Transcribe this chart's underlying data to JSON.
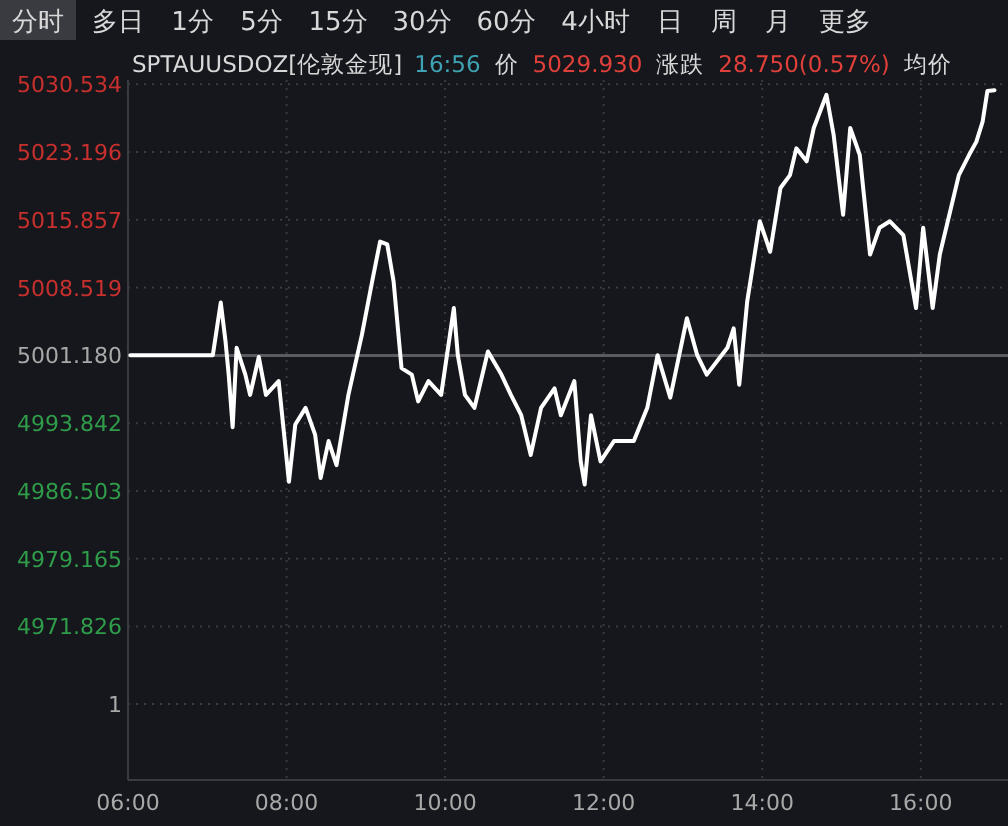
{
  "chart_data": {
    "type": "line",
    "title": "SPTAUUSDOZ[伦敦金现]",
    "annotations": [
      "分时",
      "多日",
      "1分",
      "5分",
      "15分",
      "30分",
      "60分",
      "4小时",
      "日",
      "周",
      "月",
      "更多",
      "16:56",
      "价",
      "5029.930",
      "涨跌",
      "28.750(0.57%)",
      "均价",
      "1"
    ],
    "x": [
      6.03,
      7.07,
      7.17,
      7.23,
      7.27,
      7.32,
      7.37,
      7.48,
      7.54,
      7.65,
      7.74,
      7.9,
      8.03,
      8.11,
      8.24,
      8.36,
      8.43,
      8.53,
      8.63,
      8.78,
      8.95,
      9.08,
      9.18,
      9.27,
      9.35,
      9.45,
      9.58,
      9.66,
      9.79,
      9.95,
      10.11,
      10.16,
      10.25,
      10.37,
      10.54,
      10.71,
      10.83,
      10.96,
      11.08,
      11.21,
      11.38,
      11.46,
      11.63,
      11.71,
      11.76,
      11.84,
      11.96,
      12.13,
      12.38,
      12.55,
      12.68,
      12.84,
      13.05,
      13.18,
      13.3,
      13.56,
      13.64,
      13.71,
      13.81,
      13.97,
      14.1,
      14.23,
      14.35,
      14.43,
      14.56,
      14.65,
      14.81,
      14.9,
      15.02,
      15.11,
      15.23,
      15.36,
      15.48,
      15.61,
      15.78,
      15.94,
      16.03,
      16.15,
      16.24,
      16.36,
      16.48,
      16.61,
      16.7,
      16.78,
      16.84,
      16.93
    ],
    "values": [
      5001.2,
      5001.2,
      5006.9,
      5002.7,
      4999.1,
      4993.4,
      5002.0,
      4999.1,
      4996.9,
      5001.0,
      4996.9,
      4998.4,
      4987.5,
      4993.7,
      4995.5,
      4992.6,
      4987.9,
      4991.9,
      4989.3,
      4996.9,
      5003.4,
      5009.2,
      5013.5,
      5013.2,
      5009.2,
      4999.8,
      4999.1,
      4996.2,
      4998.4,
      4996.9,
      5006.3,
      5001.2,
      4996.9,
      4995.5,
      5001.6,
      4999.1,
      4996.9,
      4994.7,
      4990.4,
      4995.5,
      4997.6,
      4994.7,
      4998.4,
      4989.7,
      4987.2,
      4994.7,
      4989.7,
      4991.9,
      4991.9,
      4995.5,
      5001.2,
      4996.6,
      5005.2,
      5001.2,
      4999.1,
      5002.0,
      5004.1,
      4998.0,
      5007.0,
      5015.7,
      5012.4,
      5019.3,
      5020.7,
      5023.6,
      5022.2,
      5025.8,
      5029.4,
      5025.1,
      5016.4,
      5025.8,
      5022.9,
      5012.1,
      5015.0,
      5015.7,
      5014.2,
      5006.3,
      5015.0,
      5006.3,
      5012.1,
      5016.4,
      5020.7,
      5022.9,
      5024.3,
      5026.5,
      5029.8,
      5029.9
    ],
    "color": "#ffffff",
    "xlim": [
      6,
      17.1
    ],
    "xticks": [
      {
        "value": 6,
        "label": "06:00"
      },
      {
        "value": 8,
        "label": "08:00"
      },
      {
        "value": 10,
        "label": "10:00"
      },
      {
        "value": 12,
        "label": "12:00"
      },
      {
        "value": 14,
        "label": "14:00"
      },
      {
        "value": 16,
        "label": "16:00"
      }
    ],
    "ylim": [
      4955.2,
      5031
    ],
    "yticks": [
      5030.534,
      5023.196,
      5015.857,
      5008.519,
      {
        "value": 5001.18,
        "label": "5001.180"
      },
      4993.842,
      4986.503,
      4979.165,
      4971.826
    ],
    "ref_lines": [
      {
        "axis": "y",
        "value": 5001.18,
        "color": "#5a5b60"
      }
    ],
    "grid": true,
    "marker": "none",
    "line_style": "solid"
  }
}
